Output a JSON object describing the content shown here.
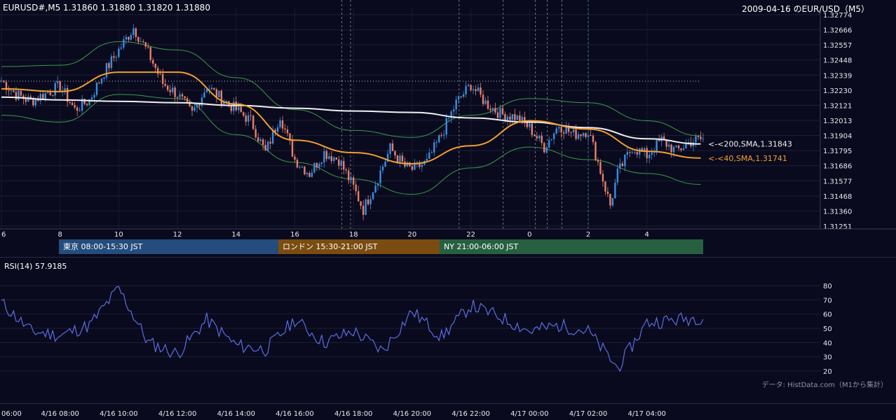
{
  "header": {
    "symbol_info": "EURUSD#,M5 1.31860 1.31880 1.31820 1.31880",
    "date_title": "2009-04-16 のEUR/USD（M5）"
  },
  "price_axis_labels": [
    "1.32774",
    "1.32666",
    "1.32557",
    "1.32448",
    "1.32339",
    "1.32230",
    "1.32121",
    "1.32013",
    "1.31904",
    "1.31795",
    "1.31686",
    "1.31577",
    "1.31468",
    "1.31360",
    "1.31251"
  ],
  "time_axis_labels": [
    "6",
    "8",
    "10",
    "12",
    "14",
    "16",
    "18",
    "20",
    "22",
    "0",
    "2",
    "4"
  ],
  "bottom_time_labels": [
    "06:00",
    "4/16 08:00",
    "4/16 10:00",
    "4/16 12:00",
    "4/16 14:00",
    "4/16 16:00",
    "4/16 18:00",
    "4/16 20:00",
    "4/16 22:00",
    "4/17 00:00",
    "4/17 02:00",
    "4/17 04:00"
  ],
  "ma_labels": {
    "sma200": "<-<200,SMA,1.31843",
    "sma40": "<-<40,SMA,1.31741"
  },
  "sessions": [
    {
      "label": "東京 08:00-15:30 JST",
      "color": "#244c7c"
    },
    {
      "label": "ロンドン 15:30-21:00 JST",
      "color": "#7a4c10"
    },
    {
      "label": "NY 21:00-06:00 JST",
      "color": "#266040"
    }
  ],
  "rsi": {
    "label": "RSI(14) 57.9185",
    "axis_labels": [
      "80",
      "70",
      "60",
      "50",
      "40",
      "30",
      "20"
    ]
  },
  "credit": "データ: HistData.com（M1から集計）",
  "colors": {
    "background": "#0a0a1e",
    "up_candle": "#3a8ee0",
    "down_candle": "#e8806a",
    "sma200": "#f0f0f0",
    "sma40": "#f0a030",
    "bollinger": "#3a9a4a",
    "rsi_line": "#5a6ee0"
  },
  "chart_data": [
    {
      "type": "line",
      "title": "EURUSD#,M5",
      "x_range": [
        "4/16 06:00",
        "4/17 05:55"
      ],
      "ylim": [
        1.31251,
        1.32774
      ],
      "series": [
        {
          "name": "200,SMA",
          "x": [
            "06:00",
            "08:00",
            "10:00",
            "12:00",
            "14:00",
            "16:00",
            "18:00",
            "20:00",
            "22:00",
            "00:00",
            "02:00",
            "04:00",
            "05:50"
          ],
          "values": [
            1.3218,
            1.3216,
            1.3215,
            1.3214,
            1.3212,
            1.321,
            1.3208,
            1.3207,
            1.3203,
            1.32,
            1.3196,
            1.3188,
            1.31843
          ]
        },
        {
          "name": "40,SMA",
          "x": [
            "06:00",
            "08:00",
            "10:00",
            "12:00",
            "14:00",
            "16:00",
            "18:00",
            "20:00",
            "22:00",
            "00:00",
            "02:00",
            "04:00",
            "05:50"
          ],
          "values": [
            1.3224,
            1.3222,
            1.3236,
            1.3236,
            1.3213,
            1.3187,
            1.3178,
            1.317,
            1.3183,
            1.3201,
            1.3195,
            1.3179,
            1.31741
          ]
        }
      ],
      "ohlc_path": {
        "x": [
          "06:00",
          "06:30",
          "07:00",
          "08:00",
          "08:30",
          "09:00",
          "09:30",
          "10:00",
          "10:30",
          "11:00",
          "11:30",
          "12:00",
          "12:30",
          "13:00",
          "13:30",
          "14:00",
          "14:30",
          "15:00",
          "15:30",
          "16:00",
          "16:30",
          "17:00",
          "17:30",
          "18:00",
          "18:20",
          "18:45",
          "19:15",
          "19:45",
          "20:00",
          "20:30",
          "21:00",
          "21:30",
          "22:00",
          "22:30",
          "23:00",
          "23:30",
          "00:00",
          "00:30",
          "01:00",
          "01:30",
          "02:00",
          "02:20",
          "02:45",
          "03:00",
          "03:30",
          "04:00",
          "04:30",
          "05:00",
          "05:30",
          "05:55"
        ],
        "close": [
          1.323,
          1.322,
          1.3215,
          1.3226,
          1.3209,
          1.3216,
          1.3236,
          1.3252,
          1.3268,
          1.325,
          1.3228,
          1.322,
          1.3206,
          1.3226,
          1.3217,
          1.3209,
          1.3201,
          1.3178,
          1.3205,
          1.3173,
          1.3163,
          1.3178,
          1.3173,
          1.3153,
          1.3137,
          1.3156,
          1.3181,
          1.3168,
          1.3166,
          1.3171,
          1.3191,
          1.3214,
          1.3227,
          1.3214,
          1.3206,
          1.3204,
          1.3196,
          1.3182,
          1.3198,
          1.3191,
          1.3194,
          1.3171,
          1.314,
          1.3163,
          1.3182,
          1.3176,
          1.3187,
          1.3179,
          1.3186,
          1.3188
        ]
      }
    },
    {
      "type": "line",
      "title": "RSI(14)",
      "ylim": [
        20,
        80
      ],
      "series": [
        {
          "name": "RSI(14)",
          "x": [
            "06:00",
            "07:00",
            "08:00",
            "09:00",
            "10:00",
            "11:00",
            "12:00",
            "13:00",
            "14:00",
            "15:00",
            "16:00",
            "17:00",
            "18:00",
            "19:00",
            "20:00",
            "21:00",
            "22:00",
            "23:00",
            "00:00",
            "01:00",
            "02:00",
            "03:00",
            "04:00",
            "05:00",
            "05:55"
          ],
          "values": [
            68,
            48,
            45,
            52,
            78,
            40,
            32,
            56,
            38,
            35,
            56,
            40,
            48,
            34,
            62,
            44,
            66,
            58,
            48,
            52,
            48,
            22,
            54,
            56,
            57.9185
          ]
        }
      ]
    }
  ]
}
